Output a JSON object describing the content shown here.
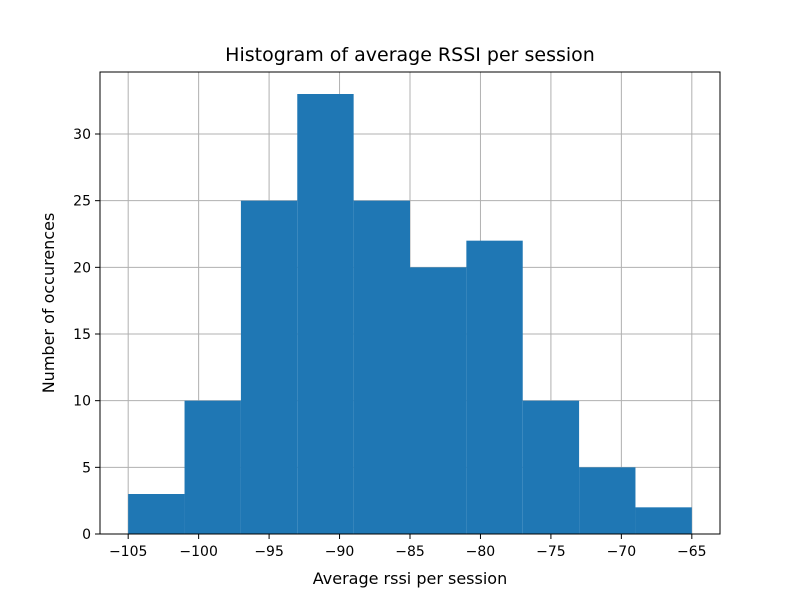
{
  "chart_data": {
    "type": "bar",
    "title": "Histogram of average RSSI per session",
    "xlabel": "Average rssi per session",
    "ylabel": "Number of occurences",
    "bin_edges": [
      -105,
      -101,
      -97,
      -93,
      -89,
      -85,
      -81,
      -77,
      -73,
      -69,
      -65
    ],
    "values": [
      3,
      10,
      25,
      33,
      25,
      20,
      22,
      10,
      5,
      2
    ],
    "xlim": [
      -107,
      -63
    ],
    "ylim": [
      0,
      34.65
    ],
    "xticks": [
      -105,
      -100,
      -95,
      -90,
      -85,
      -80,
      -75,
      -70,
      -65
    ],
    "xtick_labels": [
      "−105",
      "−100",
      "−95",
      "−90",
      "−85",
      "−80",
      "−75",
      "−70",
      "−65"
    ],
    "yticks": [
      0,
      5,
      10,
      15,
      20,
      25,
      30
    ],
    "ytick_labels": [
      "0",
      "5",
      "10",
      "15",
      "20",
      "25",
      "30"
    ],
    "grid": true,
    "colors": {
      "bar": "#1f77b4",
      "grid": "#b0b0b0",
      "axis": "#000000"
    }
  }
}
